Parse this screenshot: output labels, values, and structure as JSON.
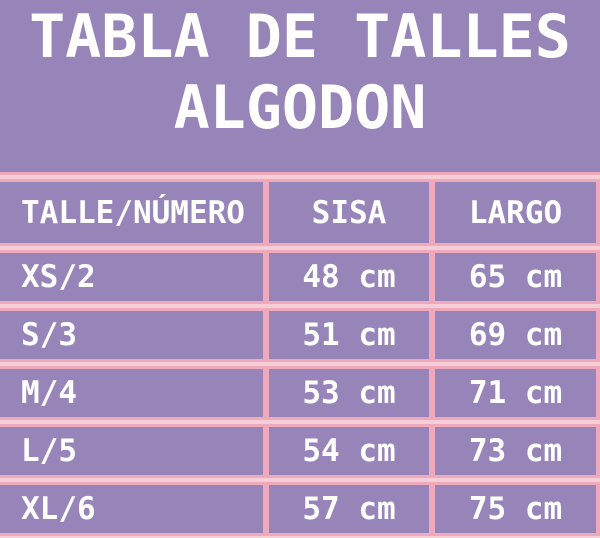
{
  "title": {
    "line1": "TABLA DE TALLES",
    "line2": "ALGODON"
  },
  "table": {
    "columns": [
      "TALLE/NÚMERO",
      "SISA",
      "LARGO"
    ],
    "rows": [
      {
        "talle": "XS/2",
        "sisa": "48 cm",
        "largo": "65 cm"
      },
      {
        "talle": "S/3",
        "sisa": "51 cm",
        "largo": "69 cm"
      },
      {
        "talle": "M/4",
        "sisa": "53 cm",
        "largo": "71 cm"
      },
      {
        "talle": "L/5",
        "sisa": "54 cm",
        "largo": "73 cm"
      },
      {
        "talle": "XL/6",
        "sisa": "57 cm",
        "largo": "75 cm"
      }
    ]
  },
  "colors": {
    "background": "#9785ba",
    "border_pink": "#eeaabc",
    "border_highlight": "#f6ced8",
    "text": "#ffffff"
  },
  "chart_data": {
    "type": "table",
    "title": "TABLA DE TALLES ALGODON",
    "columns": [
      "TALLE/NÚMERO",
      "SISA",
      "LARGO"
    ],
    "rows": [
      [
        "XS/2",
        "48 cm",
        "65 cm"
      ],
      [
        "S/3",
        "51 cm",
        "69 cm"
      ],
      [
        "M/4",
        "53 cm",
        "71 cm"
      ],
      [
        "L/5",
        "54 cm",
        "73 cm"
      ],
      [
        "XL/6",
        "57 cm",
        "75 cm"
      ]
    ],
    "units": "cm",
    "numeric": {
      "categories": [
        "XS/2",
        "S/3",
        "M/4",
        "L/5",
        "XL/6"
      ],
      "series": [
        {
          "name": "SISA",
          "values": [
            48,
            51,
            53,
            54,
            57
          ]
        },
        {
          "name": "LARGO",
          "values": [
            65,
            69,
            71,
            73,
            75
          ]
        }
      ]
    }
  }
}
